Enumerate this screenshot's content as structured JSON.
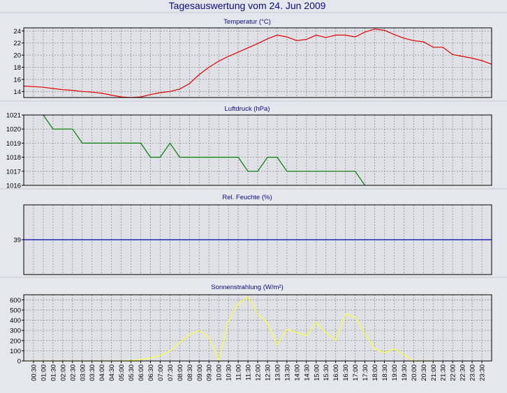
{
  "title": "Tagesauswertung vom 24. Jun 2009",
  "colors": {
    "background": "#e4e7ec",
    "plot": "#dfe1e6",
    "grid": "#8f8f8f",
    "title": "#0a0a8a",
    "temperature": "#e00000",
    "pressure": "#007a00",
    "humidity": "#0000b0",
    "radiation": "#ffff33"
  },
  "x_ticks": [
    "00:30",
    "01:00",
    "01:30",
    "02:00",
    "02:30",
    "03:00",
    "03:30",
    "04:00",
    "04:30",
    "05:00",
    "05:30",
    "06:00",
    "06:30",
    "07:00",
    "07:30",
    "08:00",
    "08:30",
    "09:00",
    "09:30",
    "10:00",
    "10:30",
    "11:00",
    "11:30",
    "12:00",
    "12:30",
    "13:00",
    "13:30",
    "14:00",
    "14:30",
    "15:00",
    "15:30",
    "16:00",
    "16:30",
    "17:00",
    "17:30",
    "18:00",
    "18:30",
    "19:00",
    "19:30",
    "20:00",
    "20:30",
    "21:00",
    "21:30",
    "22:00",
    "22:30",
    "23:00",
    "23:30"
  ],
  "chart_data": [
    {
      "type": "line",
      "title": "Temperatur (°C)",
      "ylim": [
        13,
        24.5
      ],
      "y_ticks": [
        14,
        16,
        18,
        20,
        22,
        24
      ],
      "grid": true,
      "color": "#e00000",
      "x": [
        "00:00",
        "00:30",
        "01:00",
        "01:30",
        "02:00",
        "02:30",
        "03:00",
        "03:30",
        "04:00",
        "04:30",
        "05:00",
        "05:30",
        "06:00",
        "06:30",
        "07:00",
        "07:30",
        "08:00",
        "08:30",
        "09:00",
        "09:30",
        "10:00",
        "10:30",
        "11:00",
        "11:30",
        "12:00",
        "12:30",
        "13:00",
        "13:30",
        "14:00",
        "14:30",
        "15:00",
        "15:30",
        "16:00",
        "16:30",
        "17:00",
        "17:30",
        "18:00",
        "18:30",
        "19:00",
        "19:30",
        "20:00",
        "20:30",
        "21:00",
        "21:30",
        "22:00",
        "22:30",
        "23:00",
        "23:30",
        "24:00"
      ],
      "values": [
        14.9,
        14.8,
        14.7,
        14.5,
        14.3,
        14.2,
        14.0,
        13.9,
        13.7,
        13.4,
        13.1,
        13.0,
        13.1,
        13.5,
        13.8,
        14.0,
        14.4,
        15.3,
        16.8,
        18.0,
        19.0,
        19.8,
        20.5,
        21.2,
        21.9,
        22.7,
        23.3,
        23.0,
        22.4,
        22.6,
        23.3,
        22.9,
        23.3,
        23.3,
        23.0,
        23.8,
        24.3,
        24.1,
        23.4,
        22.8,
        22.4,
        22.2,
        21.3,
        21.3,
        20.1,
        19.8,
        19.5,
        19.1,
        18.5
      ]
    },
    {
      "type": "line",
      "title": "Luftdruck (hPa)",
      "ylim": [
        1016,
        1021
      ],
      "y_ticks": [
        1016,
        1017,
        1018,
        1019,
        1020,
        1021
      ],
      "grid": true,
      "color": "#007a00",
      "x": [
        "01:00",
        "01:30",
        "02:00",
        "02:30",
        "03:00",
        "03:30",
        "04:00",
        "04:30",
        "05:00",
        "05:30",
        "06:00",
        "06:30",
        "07:00",
        "07:30",
        "08:00",
        "08:30",
        "09:00",
        "09:30",
        "10:00",
        "10:30",
        "11:00",
        "11:30",
        "12:00",
        "12:30",
        "13:00",
        "13:30",
        "14:00",
        "14:30",
        "15:00",
        "15:30",
        "16:00",
        "16:30",
        "17:00",
        "17:30"
      ],
      "values": [
        1021,
        1020,
        1020,
        1020,
        1019,
        1019,
        1019,
        1019,
        1019,
        1019,
        1019,
        1018,
        1018,
        1019,
        1018,
        1018,
        1018,
        1018,
        1018,
        1018,
        1018,
        1017,
        1017,
        1018,
        1018,
        1017,
        1017,
        1017,
        1017,
        1017,
        1017,
        1017,
        1017,
        1016
      ]
    },
    {
      "type": "line",
      "title": "Rel. Feuchte (%)",
      "ylim": [
        29,
        49
      ],
      "y_ticks": [
        39
      ],
      "grid": true,
      "color": "#0000b0",
      "x": [
        "00:00",
        "24:00"
      ],
      "values": [
        39,
        39
      ]
    },
    {
      "type": "line",
      "title": "Sonnenstrahlung (W/m²)",
      "ylim": [
        0,
        650
      ],
      "y_ticks": [
        0,
        100,
        200,
        300,
        400,
        500,
        600
      ],
      "grid": true,
      "color": "#ffff33",
      "x": [
        "00:00",
        "05:00",
        "05:30",
        "06:00",
        "06:30",
        "07:00",
        "07:30",
        "08:00",
        "08:30",
        "09:00",
        "09:30",
        "10:00",
        "10:30",
        "11:00",
        "11:30",
        "12:00",
        "12:30",
        "13:00",
        "13:30",
        "14:00",
        "14:30",
        "15:00",
        "15:30",
        "16:00",
        "16:30",
        "17:00",
        "17:30",
        "18:00",
        "18:30",
        "19:00",
        "19:30",
        "20:00",
        "20:30",
        "21:00"
      ],
      "values": [
        0,
        0,
        5,
        15,
        30,
        50,
        100,
        180,
        260,
        300,
        230,
        10,
        390,
        560,
        630,
        460,
        370,
        160,
        310,
        280,
        250,
        380,
        280,
        200,
        460,
        430,
        270,
        120,
        80,
        120,
        60,
        0,
        0,
        0
      ]
    }
  ]
}
